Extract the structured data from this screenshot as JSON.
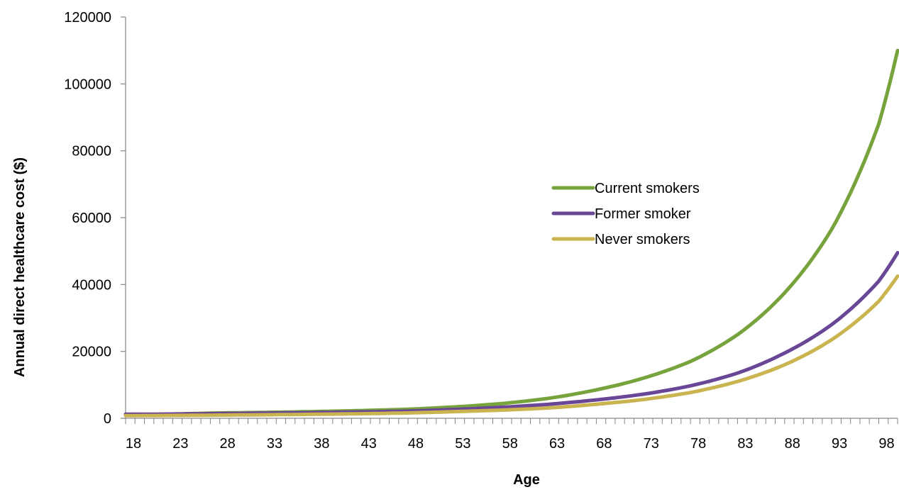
{
  "chart_data": {
    "type": "line",
    "title": "",
    "xlabel": "Age",
    "ylabel": "Annual direct healthcare cost ($)",
    "xlim": [
      18,
      100
    ],
    "ylim": [
      0,
      120000
    ],
    "x_tick_labels": [
      "18",
      "23",
      "28",
      "33",
      "38",
      "43",
      "48",
      "53",
      "58",
      "63",
      "68",
      "73",
      "78",
      "83",
      "88",
      "93",
      "98"
    ],
    "y_tick_labels": [
      "0",
      "20000",
      "40000",
      "60000",
      "80000",
      "100000",
      "120000"
    ],
    "grid": false,
    "legend_position": "center-right",
    "x": [
      18,
      23,
      28,
      33,
      38,
      43,
      48,
      53,
      58,
      63,
      68,
      73,
      78,
      83,
      88,
      93,
      98,
      100
    ],
    "series": [
      {
        "name": "Current smokers",
        "color": "#77a33c",
        "values": [
          1000,
          1280,
          1600,
          1750,
          2000,
          2300,
          2700,
          3400,
          4400,
          6000,
          8500,
          12000,
          17000,
          25000,
          37500,
          56500,
          88000,
          110000
        ]
      },
      {
        "name": "Former smoker",
        "color": "#6a4696",
        "values": [
          1200,
          1250,
          1400,
          1550,
          1700,
          1900,
          2150,
          2650,
          3300,
          4200,
          5500,
          7200,
          9700,
          13500,
          19500,
          28000,
          41000,
          49500
        ]
      },
      {
        "name": "Never smokers",
        "color": "#c9b450",
        "values": [
          800,
          850,
          950,
          1050,
          1200,
          1350,
          1600,
          2000,
          2450,
          3100,
          4200,
          5600,
          7700,
          11000,
          16000,
          23500,
          35000,
          42500
        ]
      }
    ]
  }
}
